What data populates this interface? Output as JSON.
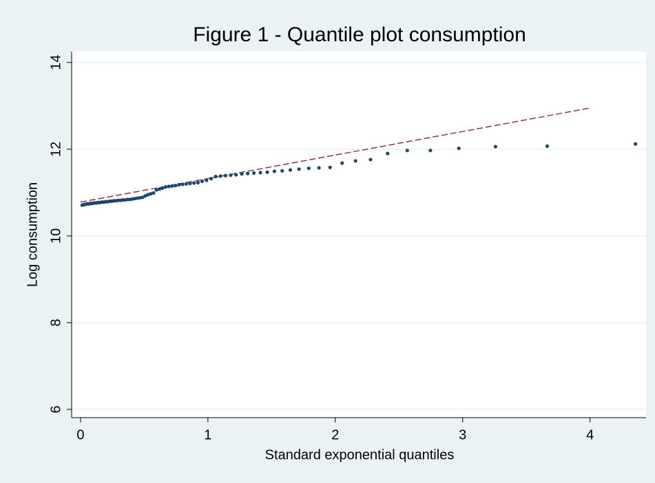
{
  "chart_data": {
    "type": "scatter",
    "title": "Figure 1 - Quantile plot consumption",
    "x_label": "Standard exponential quantiles",
    "y_label": "Log consumption",
    "xlim": [
      -0.07,
      4.44
    ],
    "ylim": [
      5.81,
      14.25
    ],
    "xticks": [
      0,
      1,
      2,
      3,
      4
    ],
    "yticks": [
      6,
      8,
      10,
      12,
      14
    ],
    "grid": true,
    "points": {
      "color": "#1a476f",
      "x": [
        0.013,
        0.026,
        0.039,
        0.053,
        0.066,
        0.08,
        0.094,
        0.108,
        0.123,
        0.137,
        0.152,
        0.167,
        0.182,
        0.198,
        0.214,
        0.23,
        0.246,
        0.262,
        0.279,
        0.296,
        0.314,
        0.331,
        0.349,
        0.368,
        0.386,
        0.405,
        0.425,
        0.445,
        0.465,
        0.486,
        0.507,
        0.528,
        0.55,
        0.573,
        0.596,
        0.619,
        0.643,
        0.668,
        0.693,
        0.719,
        0.746,
        0.773,
        0.801,
        0.83,
        0.86,
        0.891,
        0.922,
        0.955,
        0.989,
        1.025,
        1.061,
        1.099,
        1.138,
        1.179,
        1.221,
        1.266,
        1.312,
        1.361,
        1.412,
        1.466,
        1.522,
        1.583,
        1.647,
        1.715,
        1.792,
        1.872,
        1.959,
        2.054,
        2.159,
        2.277,
        2.411,
        2.565,
        2.747,
        2.97,
        3.258,
        3.664,
        4.357
      ],
      "y": [
        10.71,
        10.72,
        10.73,
        10.74,
        10.74,
        10.75,
        10.75,
        10.76,
        10.76,
        10.77,
        10.77,
        10.78,
        10.78,
        10.79,
        10.79,
        10.8,
        10.8,
        10.81,
        10.81,
        10.82,
        10.82,
        10.83,
        10.83,
        10.84,
        10.84,
        10.85,
        10.86,
        10.87,
        10.88,
        10.89,
        10.92,
        10.95,
        10.97,
        10.99,
        11.06,
        11.08,
        11.1,
        11.13,
        11.14,
        11.15,
        11.16,
        11.18,
        11.19,
        11.2,
        11.21,
        11.22,
        11.23,
        11.26,
        11.28,
        11.32,
        11.37,
        11.38,
        11.39,
        11.4,
        11.41,
        11.43,
        11.44,
        11.45,
        11.46,
        11.47,
        11.49,
        11.5,
        11.52,
        11.54,
        11.56,
        11.57,
        11.58,
        11.68,
        11.73,
        11.76,
        11.9,
        11.97,
        11.97,
        12.02,
        12.06,
        12.07,
        12.12
      ]
    },
    "reference_line": {
      "color": "#90353b",
      "x": [
        0,
        4
      ],
      "y": [
        10.78,
        12.95
      ]
    }
  }
}
